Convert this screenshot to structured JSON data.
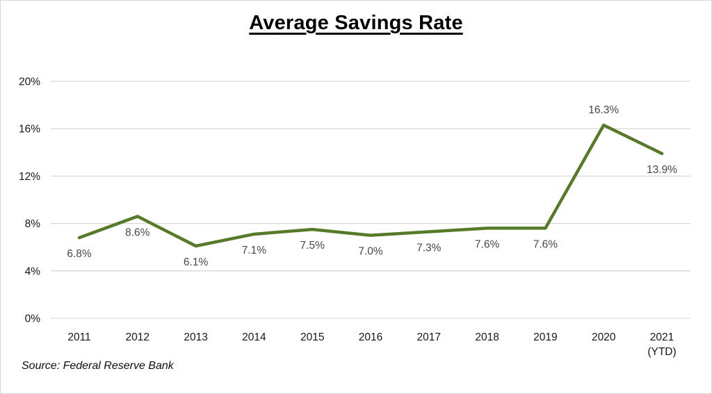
{
  "chart_data": {
    "type": "line",
    "title": "Average Savings Rate",
    "source_note": "Source: Federal Reserve Bank",
    "categories": [
      {
        "label": "2011",
        "sublabel": ""
      },
      {
        "label": "2012",
        "sublabel": ""
      },
      {
        "label": "2013",
        "sublabel": ""
      },
      {
        "label": "2014",
        "sublabel": ""
      },
      {
        "label": "2015",
        "sublabel": ""
      },
      {
        "label": "2016",
        "sublabel": ""
      },
      {
        "label": "2017",
        "sublabel": ""
      },
      {
        "label": "2018",
        "sublabel": ""
      },
      {
        "label": "2019",
        "sublabel": ""
      },
      {
        "label": "2020",
        "sublabel": ""
      },
      {
        "label": "2021",
        "sublabel": "(YTD)"
      }
    ],
    "values": [
      6.8,
      8.6,
      6.1,
      7.1,
      7.5,
      7.0,
      7.3,
      7.6,
      7.6,
      16.3,
      13.9
    ],
    "point_labels": [
      "6.8%",
      "8.6%",
      "6.1%",
      "7.1%",
      "7.5%",
      "7.0%",
      "7.3%",
      "7.6%",
      "7.6%",
      "16.3%",
      "13.9%"
    ],
    "point_label_positions": [
      "below",
      "below",
      "below",
      "below",
      "below",
      "below",
      "below",
      "below",
      "below",
      "above",
      "below"
    ],
    "yticks": [
      {
        "value": 0,
        "label": "0%"
      },
      {
        "value": 4,
        "label": "4%"
      },
      {
        "value": 8,
        "label": "8%"
      },
      {
        "value": 12,
        "label": "12%"
      },
      {
        "value": 16,
        "label": "16%"
      },
      {
        "value": 20,
        "label": "20%"
      }
    ],
    "ylim": [
      0,
      20
    ],
    "xlabel": "",
    "ylabel": "",
    "grid": "horizontal",
    "legend": "none",
    "colors": {
      "line": "#557A28",
      "gridline": "#D9D9D9",
      "axis_text": "#161616",
      "data_label_text": "#474747",
      "title_text": "#000000"
    }
  }
}
